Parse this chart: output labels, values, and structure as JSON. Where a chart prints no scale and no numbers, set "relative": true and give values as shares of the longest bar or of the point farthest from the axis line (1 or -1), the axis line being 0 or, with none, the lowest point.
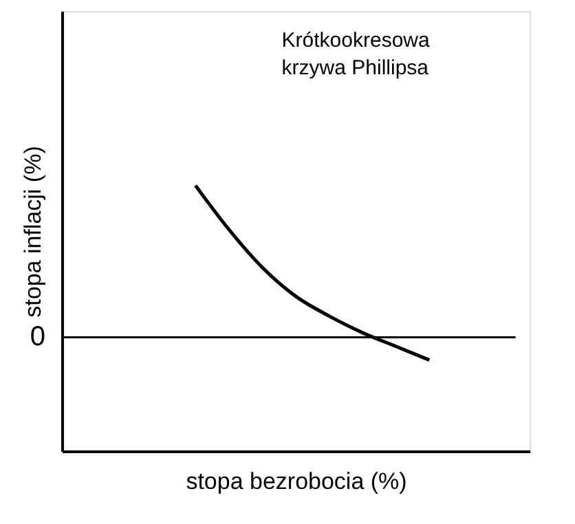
{
  "chart_data": {
    "type": "line",
    "relative": true,
    "xlabel": "stopa bezrobocia (%)",
    "ylabel": "stopa inflacji (%)",
    "categories": [
      null,
      null,
      null,
      null,
      null,
      null,
      null,
      null,
      null,
      null,
      null,
      null,
      null,
      null,
      null
    ],
    "series": [
      {
        "color": "#000000",
        "values": [
          null,
          null,
          null,
          null,
          1,
          0.71,
          0.46,
          0.27,
          0.14,
          0.03,
          -0.06,
          -0.15,
          null,
          null,
          null
        ]
      }
    ],
    "ref_lines": [
      {
        "axis": "y",
        "value": 0,
        "label": "0",
        "color": "#000000"
      }
    ],
    "annotations": [
      "Krótkookresowa\nkrzywa Phillipsa"
    ],
    "tick_labels": false,
    "grid": false,
    "marker": "none",
    "line_style": "solid"
  }
}
